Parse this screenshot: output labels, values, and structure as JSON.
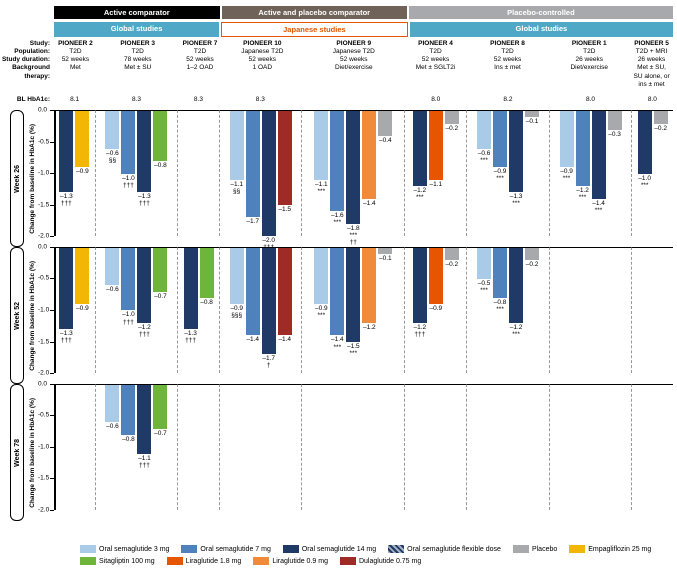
{
  "top_bands": [
    {
      "label": "Active comparator",
      "bg": "#000000",
      "span": 3
    },
    {
      "label": "Active and placebo comparator",
      "bg": "#6e6259",
      "span": 2
    },
    {
      "label": "Placebo-controlled",
      "bg": "#a7a9ac",
      "span": 4
    }
  ],
  "sub_bands": [
    {
      "label": "Global studies",
      "bg": "#4fa9c6",
      "border": null,
      "span": 3
    },
    {
      "label": "Japanese studies",
      "bg": "#ffffff",
      "border": "#e75500",
      "color": "#e75500",
      "span": 2
    },
    {
      "label": "Global studies",
      "bg": "#4fa9c6",
      "border": null,
      "span": 4
    }
  ],
  "meta_labels": [
    "Study:",
    "Population:",
    "Study duration:",
    "Background therapy:"
  ],
  "bl_label": "BL HbA1c:",
  "y_label": "Change from baseline in HbA1c (%)",
  "rows": [
    {
      "title": "Week 26",
      "ymin": -2.0,
      "ymax": 0.0,
      "ticks": [
        0.0,
        -0.5,
        -1.0,
        -1.5,
        -2.0
      ]
    },
    {
      "title": "Week 52",
      "ymin": -2.0,
      "ymax": 0.0,
      "ticks": [
        0.0,
        -0.5,
        -1.0,
        -1.5,
        -2.0
      ]
    },
    {
      "title": "Week 78",
      "ymin": -2.0,
      "ymax": 0.0,
      "ticks": [
        0.0,
        -0.5,
        -1.0,
        -1.5,
        -2.0
      ]
    }
  ],
  "columns": [
    {
      "id": "p2",
      "title": "PIONEER 2",
      "pop": "T2D",
      "dur": "52 weeks",
      "bg": "Met",
      "bl": "8.1",
      "rel_width": 2
    },
    {
      "id": "p3",
      "title": "PIONEER 3",
      "pop": "T2D",
      "dur": "78 weeks",
      "bg": "Met ± SU",
      "bl": "8.3",
      "rel_width": 4
    },
    {
      "id": "p7",
      "title": "PIONEER 7",
      "pop": "T2D",
      "dur": "52 weeks",
      "bg": "1–2 OAD",
      "bl": "8.3",
      "rel_width": 2
    },
    {
      "id": "p10",
      "title": "PIONEER 10",
      "pop": "Japanese T2D",
      "dur": "52 weeks",
      "bg": "1 OAD",
      "bl": "8.3",
      "rel_width": 4
    },
    {
      "id": "p9",
      "title": "PIONEER 9",
      "pop": "Japanese T2D",
      "dur": "52 weeks",
      "bg": "Diet/exercise",
      "bl": "",
      "rel_width": 5
    },
    {
      "id": "p4",
      "title": "PIONEER 4",
      "pop": "T2D",
      "dur": "52 weeks",
      "bg": "Met ± SGLT2i",
      "bl": "8.0",
      "rel_width": 3
    },
    {
      "id": "p8",
      "title": "PIONEER 8",
      "pop": "T2D",
      "dur": "52 weeks",
      "bg": "Ins ± met",
      "bl": "8.2",
      "rel_width": 4
    },
    {
      "id": "p1",
      "title": "PIONEER 1",
      "pop": "T2D",
      "dur": "26 weeks",
      "bg": "Diet/exercise",
      "bl": "8.0",
      "rel_width": 4
    },
    {
      "id": "p5",
      "title": "PIONEER 5",
      "pop": "T2D + MRI",
      "dur": "26 weeks",
      "bg": "Met ± SU, SU alone, or ins ± met",
      "bl": "8.0",
      "rel_width": 2
    }
  ],
  "colors": {
    "sema3": "#a9cbe8",
    "sema7": "#4f81bd",
    "sema14": "#1f3a66",
    "semaflex": "#1f3a66",
    "placebo": "#a7a9ac",
    "empa": "#f2b705",
    "sita": "#6fb53c",
    "lira18": "#e75500",
    "lira09": "#f08b3c",
    "dula": "#9e2b25"
  },
  "legend": [
    {
      "key": "sema3",
      "label": "Oral semaglutide 3 mg"
    },
    {
      "key": "sema7",
      "label": "Oral semaglutide 7 mg"
    },
    {
      "key": "sema14",
      "label": "Oral semaglutide 14 mg"
    },
    {
      "key": "semaflex",
      "label": "Oral semaglutide flexible dose",
      "hatched": true
    },
    {
      "key": "placebo",
      "label": "Placebo"
    },
    {
      "key": "empa",
      "label": "Empagliflozin 25 mg"
    },
    {
      "key": "sita",
      "label": "Sitagliptin 100 mg"
    },
    {
      "key": "lira18",
      "label": "Liraglutide 1.8 mg"
    },
    {
      "key": "lira09",
      "label": "Liraglutide 0.9 mg"
    },
    {
      "key": "dula",
      "label": "Dulaglutide 0.75 mg"
    }
  ],
  "data": {
    "p2": {
      "w26": [
        {
          "key": "sema14",
          "val": -1.3,
          "annot": "–1.3\n†††"
        },
        {
          "key": "empa",
          "val": -0.9,
          "annot": "–0.9"
        }
      ],
      "w52": [
        {
          "key": "sema14",
          "val": -1.3,
          "annot": "–1.3\n†††"
        },
        {
          "key": "empa",
          "val": -0.9,
          "annot": "–0.9"
        }
      ]
    },
    "p3": {
      "w26": [
        {
          "key": "sema3",
          "val": -0.6,
          "annot": "–0.6\n§§"
        },
        {
          "key": "sema7",
          "val": -1.0,
          "annot": "–1.0\n†††"
        },
        {
          "key": "sema14",
          "val": -1.3,
          "annot": "–1.3\n†††"
        },
        {
          "key": "sita",
          "val": -0.8,
          "annot": "–0.8"
        }
      ],
      "w52": [
        {
          "key": "sema3",
          "val": -0.6,
          "annot": "–0.6"
        },
        {
          "key": "sema7",
          "val": -1.0,
          "annot": "–1.0\n†††"
        },
        {
          "key": "sema14",
          "val": -1.2,
          "annot": "–1.2\n†††"
        },
        {
          "key": "sita",
          "val": -0.7,
          "annot": "–0.7"
        }
      ],
      "w78": [
        {
          "key": "sema3",
          "val": -0.6,
          "annot": "–0.6"
        },
        {
          "key": "sema7",
          "val": -0.8,
          "annot": "–0.8"
        },
        {
          "key": "sema14",
          "val": -1.1,
          "annot": "–1.1\n†††"
        },
        {
          "key": "sita",
          "val": -0.7,
          "annot": "–0.7"
        }
      ]
    },
    "p7": {
      "w52": [
        {
          "key": "semaflex",
          "val": -1.3,
          "annot": "–1.3\n†††",
          "hatched": true
        },
        {
          "key": "sita",
          "val": -0.8,
          "annot": "–0.8"
        }
      ]
    },
    "p10": {
      "w26": [
        {
          "key": "sema3",
          "val": -1.1,
          "annot": "–1.1\n§§"
        },
        {
          "key": "sema7",
          "val": -1.7,
          "annot": "–1.7"
        },
        {
          "key": "sema14",
          "val": -2.0,
          "annot": "–2.0\n†††"
        },
        {
          "key": "dula",
          "val": -1.5,
          "annot": "–1.5"
        }
      ],
      "w52": [
        {
          "key": "sema3",
          "val": -0.9,
          "annot": "–0.9\n§§§"
        },
        {
          "key": "sema7",
          "val": -1.4,
          "annot": "–1.4"
        },
        {
          "key": "sema14",
          "val": -1.7,
          "annot": "–1.7\n†"
        },
        {
          "key": "dula",
          "val": -1.4,
          "annot": "–1.4"
        }
      ]
    },
    "p9": {
      "w26": [
        {
          "key": "sema3",
          "val": -1.1,
          "annot": "–1.1\n***"
        },
        {
          "key": "sema7",
          "val": -1.6,
          "annot": "–1.6\n***"
        },
        {
          "key": "sema14",
          "val": -1.8,
          "annot": "–1.8\n***\n††"
        },
        {
          "key": "lira09",
          "val": -1.4,
          "annot": "–1.4"
        },
        {
          "key": "placebo",
          "val": -0.4,
          "annot": "–0.4"
        }
      ],
      "w52": [
        {
          "key": "sema3",
          "val": -0.9,
          "annot": "–0.9\n***"
        },
        {
          "key": "sema7",
          "val": -1.4,
          "annot": "–1.4\n***"
        },
        {
          "key": "sema14",
          "val": -1.5,
          "annot": "–1.5\n***"
        },
        {
          "key": "lira09",
          "val": -1.2,
          "annot": "–1.2"
        },
        {
          "key": "placebo",
          "val": -0.1,
          "annot": "–0.1"
        }
      ]
    },
    "p4": {
      "w26": [
        {
          "key": "sema14",
          "val": -1.2,
          "annot": "–1.2\n***"
        },
        {
          "key": "lira18",
          "val": -1.1,
          "annot": "–1.1"
        },
        {
          "key": "placebo",
          "val": -0.2,
          "annot": "–0.2"
        }
      ],
      "w52": [
        {
          "key": "sema14",
          "val": -1.2,
          "annot": "–1.2\n†††"
        },
        {
          "key": "lira18",
          "val": -0.9,
          "annot": "–0.9"
        },
        {
          "key": "placebo",
          "val": -0.2,
          "annot": "–0.2"
        }
      ]
    },
    "p8": {
      "w26": [
        {
          "key": "sema3",
          "val": -0.6,
          "annot": "–0.6\n***"
        },
        {
          "key": "sema7",
          "val": -0.9,
          "annot": "–0.9\n***"
        },
        {
          "key": "sema14",
          "val": -1.3,
          "annot": "–1.3\n***"
        },
        {
          "key": "placebo",
          "val": -0.1,
          "annot": "–0.1"
        }
      ],
      "w52": [
        {
          "key": "sema3",
          "val": -0.5,
          "annot": "–0.5\n***"
        },
        {
          "key": "sema7",
          "val": -0.8,
          "annot": "–0.8\n***"
        },
        {
          "key": "sema14",
          "val": -1.2,
          "annot": "–1.2\n***"
        },
        {
          "key": "placebo",
          "val": -0.2,
          "annot": "–0.2"
        }
      ]
    },
    "p1": {
      "w26": [
        {
          "key": "sema3",
          "val": -0.9,
          "annot": "–0.9\n***"
        },
        {
          "key": "sema7",
          "val": -1.2,
          "annot": "–1.2\n***"
        },
        {
          "key": "sema14",
          "val": -1.4,
          "annot": "–1.4\n***"
        },
        {
          "key": "placebo",
          "val": -0.3,
          "annot": "–0.3"
        }
      ]
    },
    "p5": {
      "w26": [
        {
          "key": "sema14",
          "val": -1.0,
          "annot": "–1.0\n***"
        },
        {
          "key": "placebo",
          "val": -0.2,
          "annot": "–0.2"
        }
      ]
    }
  }
}
